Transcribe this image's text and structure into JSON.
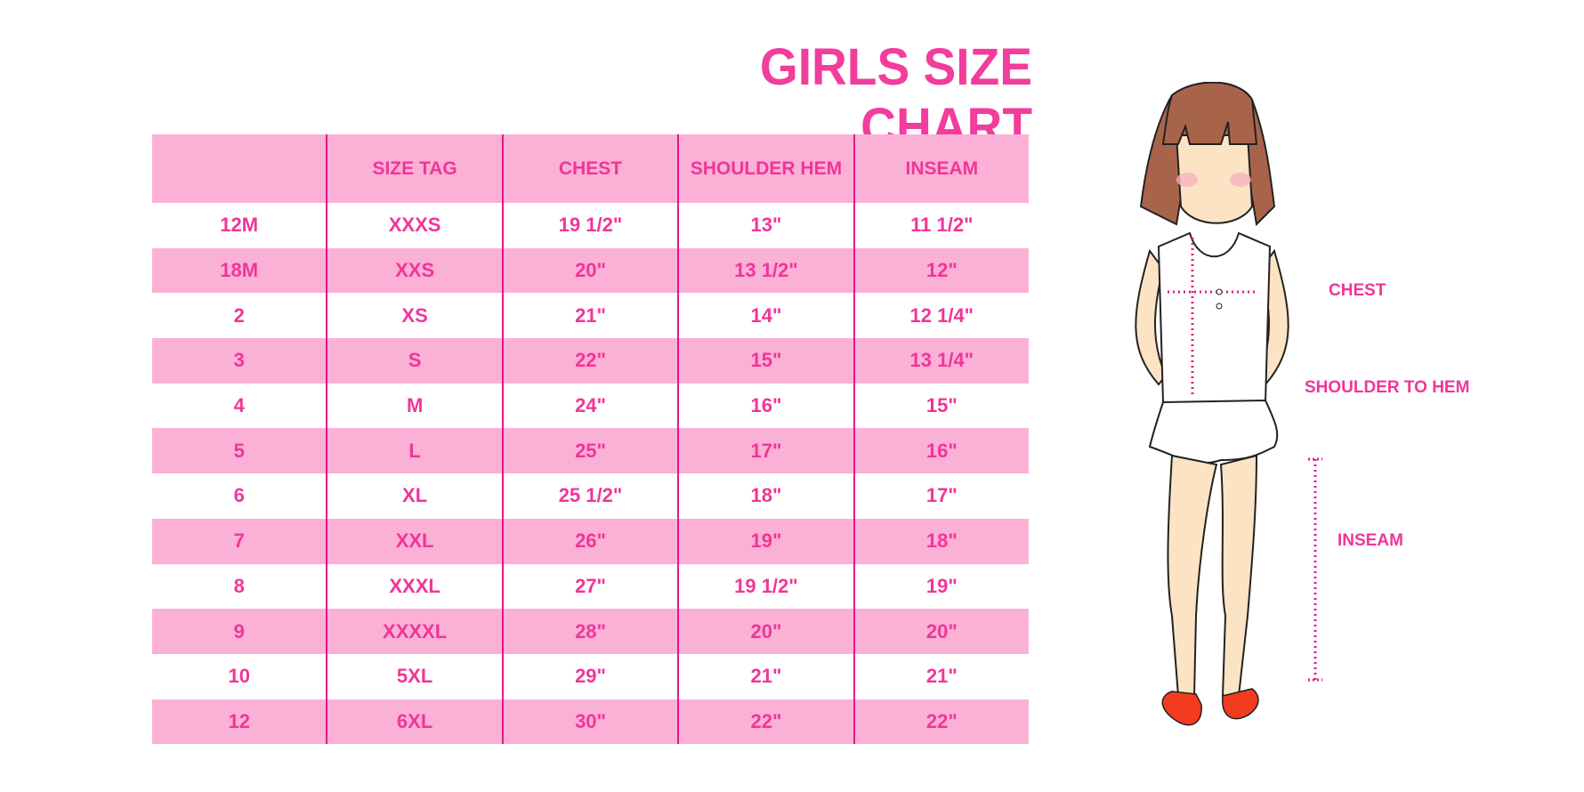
{
  "title": "GIRLS SIZE CHART",
  "table": {
    "headers": [
      "",
      "SIZE TAG",
      "CHEST",
      "SHOULDER HEM",
      "INSEAM"
    ],
    "rows": [
      [
        "12M",
        "XXXS",
        "19 1/2\"",
        "13\"",
        "11 1/2\""
      ],
      [
        "18M",
        "XXS",
        "20\"",
        "13 1/2\"",
        "12\""
      ],
      [
        "2",
        "XS",
        "21\"",
        "14\"",
        "12 1/4\""
      ],
      [
        "3",
        "S",
        "22\"",
        "15\"",
        "13 1/4\""
      ],
      [
        "4",
        "M",
        "24\"",
        "16\"",
        "15\""
      ],
      [
        "5",
        "L",
        "25\"",
        "17\"",
        "16\""
      ],
      [
        "6",
        "XL",
        "25 1/2\"",
        "18\"",
        "17\""
      ],
      [
        "7",
        "XXL",
        "26\"",
        "19\"",
        "18\""
      ],
      [
        "8",
        "XXXL",
        "27\"",
        "19 1/2\"",
        "19\""
      ],
      [
        "9",
        "XXXXL",
        "28\"",
        "20\"",
        "20\""
      ],
      [
        "10",
        "5XL",
        "29\"",
        "21\"",
        "21\""
      ],
      [
        "12",
        "6XL",
        "30\"",
        "22\"",
        "22\""
      ]
    ]
  },
  "figure": {
    "labels": {
      "chest": "CHEST",
      "shoulder_to_hem": "SHOULDER TO HEM",
      "inseam": "INSEAM"
    }
  },
  "colors": {
    "accent": "#f0359a",
    "row_pink": "#fbb0d5",
    "divider": "#e8168a"
  }
}
